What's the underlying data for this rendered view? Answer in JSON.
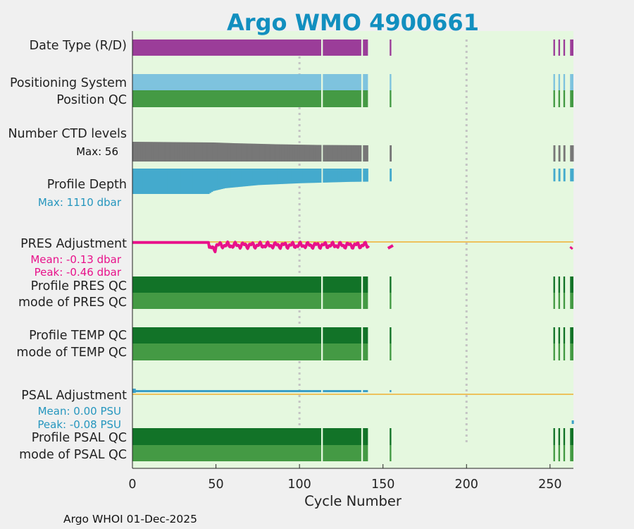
{
  "chart_data": {
    "type": "timeline",
    "title": "Argo WMO 4900661",
    "xlabel": "Cycle Number",
    "xlim": [
      0,
      264
    ],
    "xticks": [
      0,
      50,
      100,
      150,
      200,
      250
    ],
    "gridlines_x": [
      100,
      200
    ],
    "footer": "Argo WHOI 01-Dec-2025",
    "cycles": {
      "segments": [
        [
          0,
          113
        ],
        [
          114,
          137
        ],
        [
          138,
          141
        ],
        [
          154,
          155
        ],
        [
          252,
          253
        ],
        [
          255,
          256
        ],
        [
          258,
          259
        ],
        [
          262,
          264
        ]
      ]
    },
    "rows": [
      {
        "label": "Date Type (R/D)",
        "key": "datetype",
        "color": "#9b3d99"
      },
      {
        "label": "Positioning System",
        "key": "possys",
        "color": "#7ec3de"
      },
      {
        "label": "Position QC",
        "key": "posqc",
        "color": "#449a44"
      },
      {
        "label": "Number CTD levels",
        "key": "nlev",
        "color": "#777777",
        "annotation": "Max: 56"
      },
      {
        "label": "Profile Depth",
        "key": "depth",
        "color": "#44aacd",
        "annotation": "Max: 1110 dbar"
      },
      {
        "label": "PRES Adjustment",
        "key": "presadj",
        "color": "#e8118a",
        "annotations": [
          "Mean: -0.13 dbar",
          "Peak: -0.46 dbar"
        ]
      },
      {
        "label": "Profile PRES QC",
        "key": "presqc",
        "color": "#127328"
      },
      {
        "label": "mode of PRES QC",
        "key": "presmode",
        "color": "#449a44"
      },
      {
        "label": "Profile TEMP QC",
        "key": "tempqc",
        "color": "#127328"
      },
      {
        "label": "mode of TEMP QC",
        "key": "tempmode",
        "color": "#449a44"
      },
      {
        "label": "PSAL Adjustment",
        "key": "psaladj",
        "color": "#3aa0c8",
        "annotations": [
          "Mean: 0.00 PSU",
          "Peak: -0.08 PSU"
        ]
      },
      {
        "label": "Profile PSAL QC",
        "key": "psalqc",
        "color": "#127328"
      },
      {
        "label": "mode of PSAL QC",
        "key": "psalmode",
        "color": "#449a44"
      }
    ],
    "ctd_levels_by_cycle": [
      [
        0,
        56
      ],
      [
        48,
        54
      ],
      [
        60,
        52
      ],
      [
        85,
        49
      ],
      [
        110,
        47
      ],
      [
        142,
        46
      ]
    ],
    "profile_depth_by_cycle": [
      [
        0,
        1110
      ],
      [
        45,
        1110
      ],
      [
        48,
        980
      ],
      [
        55,
        860
      ],
      [
        75,
        720
      ],
      [
        100,
        640
      ],
      [
        130,
        580
      ],
      [
        155,
        560
      ]
    ],
    "pres_adjustment_mean": -0.13,
    "pres_adjustment_peak": -0.46,
    "psal_adjustment_mean": 0.0,
    "psal_adjustment_peak": -0.08,
    "reference_line_color": "#f0b030",
    "background_color": "#e5f8df"
  }
}
